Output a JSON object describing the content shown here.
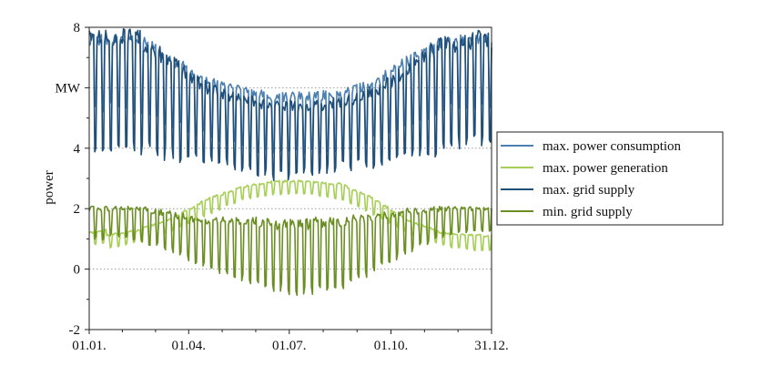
{
  "chart_data": {
    "type": "line",
    "title": "",
    "xlabel": "",
    "ylabel": "power",
    "y_unit": "MW",
    "x_tick_labels": [
      "01.01.",
      "01.04.",
      "01.07.",
      "01.10.",
      "31.12."
    ],
    "x_tick_days": [
      0,
      90,
      181,
      273,
      364
    ],
    "xlim": [
      0,
      364
    ],
    "ylim": [
      -2,
      8
    ],
    "y_ticks": [
      -2,
      0,
      2,
      4,
      6,
      8
    ],
    "y_tick_labels": [
      "-2",
      "0",
      "2",
      "4",
      "",
      "8"
    ],
    "grid": "dotted horizontal at y = 0, 2, 4, 6",
    "legend_position": "right",
    "series": [
      {
        "name": "max. power consumption",
        "color": "#4a7fb0",
        "envelope_high": [
          7.6,
          7.6,
          6.9,
          6.2,
          5.9,
          5.7,
          5.7,
          5.8,
          6.2,
          6.9,
          7.5,
          7.6
        ],
        "envelope_low": [
          5.5,
          5.3,
          4.8,
          4.4,
          4.1,
          3.9,
          3.9,
          4.0,
          4.3,
          4.8,
          5.3,
          5.5
        ]
      },
      {
        "name": "max. power generation",
        "color": "#a7cf57",
        "envelope_high": [
          1.1,
          1.3,
          1.7,
          2.3,
          2.7,
          2.9,
          2.9,
          2.8,
          2.3,
          1.6,
          1.2,
          1.1
        ],
        "envelope_low": [
          0.7,
          0.9,
          1.3,
          1.8,
          2.3,
          2.5,
          2.5,
          2.3,
          1.8,
          1.2,
          0.8,
          0.6
        ]
      },
      {
        "name": "max. grid supply",
        "color": "#1f4e79",
        "envelope_high": [
          7.7,
          7.6,
          6.8,
          6.0,
          5.6,
          5.4,
          5.4,
          5.5,
          5.9,
          6.6,
          7.4,
          7.6
        ],
        "envelope_low": [
          4.2,
          4.0,
          3.8,
          3.6,
          3.4,
          3.1,
          3.2,
          3.4,
          3.5,
          3.7,
          4.0,
          4.3
        ]
      },
      {
        "name": "min. grid supply",
        "color": "#6b8e23",
        "envelope_high": [
          2.0,
          2.0,
          1.8,
          1.6,
          1.6,
          1.5,
          1.5,
          1.6,
          1.7,
          1.9,
          2.0,
          2.0
        ],
        "envelope_low": [
          1.2,
          1.0,
          0.6,
          0.1,
          -0.3,
          -0.6,
          -0.8,
          -0.5,
          0.0,
          0.6,
          1.1,
          1.3
        ]
      }
    ]
  }
}
